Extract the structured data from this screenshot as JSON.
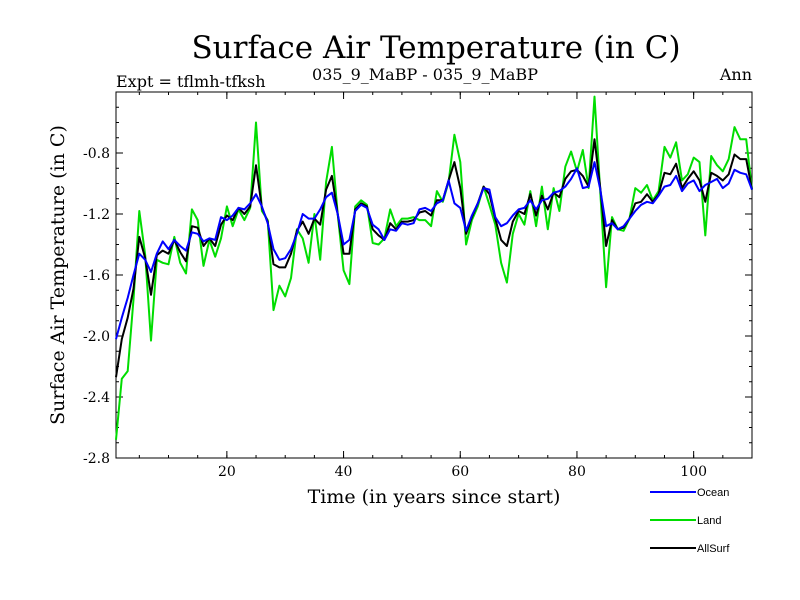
{
  "chart_data": {
    "type": "line",
    "title": "Surface Air Temperature (in C)",
    "subtitle_left": "Expt = tflmh-tfksh",
    "subtitle_center": "035_9_MaBP - 035_9_MaBP",
    "subtitle_right": "Ann",
    "xlabel": "Time (in years since start)",
    "ylabel": "Surface Air Temperature (in C)",
    "xlim": [
      1,
      110
    ],
    "ylim": [
      -2.8,
      -0.4
    ],
    "xticks": [
      20,
      40,
      60,
      80,
      100
    ],
    "xtick_labels": [
      "20",
      "40",
      "60",
      "80",
      "100"
    ],
    "yticks": [
      -2.8,
      -2.4,
      -2.0,
      -1.6,
      -1.2,
      -0.8
    ],
    "ytick_labels": [
      "-2.8",
      "-2.4",
      "-2.0",
      "-1.6",
      "-1.2",
      "-0.8"
    ],
    "x": [
      1,
      2,
      3,
      4,
      5,
      6,
      7,
      8,
      9,
      10,
      11,
      12,
      13,
      14,
      15,
      16,
      17,
      18,
      19,
      20,
      21,
      22,
      23,
      24,
      25,
      26,
      27,
      28,
      29,
      30,
      31,
      32,
      33,
      34,
      35,
      36,
      37,
      38,
      39,
      40,
      41,
      42,
      43,
      44,
      45,
      46,
      47,
      48,
      49,
      50,
      51,
      52,
      53,
      54,
      55,
      56,
      57,
      58,
      59,
      60,
      61,
      62,
      63,
      64,
      65,
      66,
      67,
      68,
      69,
      70,
      71,
      72,
      73,
      74,
      75,
      76,
      77,
      78,
      79,
      80,
      81,
      82,
      83,
      84,
      85,
      86,
      87,
      88,
      89,
      90,
      91,
      92,
      93,
      94,
      95,
      96,
      97,
      98,
      99,
      100,
      101,
      102,
      103,
      104,
      105,
      106,
      107,
      108,
      109,
      110
    ],
    "series": [
      {
        "name": "Ocean",
        "color": "#0000ff",
        "values": [
          -2.02,
          -1.88,
          -1.75,
          -1.6,
          -1.46,
          -1.5,
          -1.58,
          -1.46,
          -1.38,
          -1.43,
          -1.37,
          -1.41,
          -1.44,
          -1.32,
          -1.33,
          -1.38,
          -1.36,
          -1.37,
          -1.22,
          -1.24,
          -1.21,
          -1.16,
          -1.17,
          -1.13,
          -1.07,
          -1.15,
          -1.26,
          -1.43,
          -1.5,
          -1.49,
          -1.43,
          -1.33,
          -1.2,
          -1.23,
          -1.23,
          -1.17,
          -1.09,
          -1.06,
          -1.2,
          -1.4,
          -1.37,
          -1.18,
          -1.14,
          -1.16,
          -1.27,
          -1.3,
          -1.37,
          -1.3,
          -1.31,
          -1.26,
          -1.27,
          -1.26,
          -1.17,
          -1.16,
          -1.18,
          -1.13,
          -1.11,
          -0.98,
          -1.13,
          -1.16,
          -1.31,
          -1.21,
          -1.13,
          -1.03,
          -1.04,
          -1.22,
          -1.28,
          -1.26,
          -1.21,
          -1.17,
          -1.16,
          -1.11,
          -1.17,
          -1.11,
          -1.1,
          -1.06,
          -1.05,
          -1.02,
          -0.97,
          -0.9,
          -1.03,
          -1.02,
          -0.86,
          -1.04,
          -1.28,
          -1.26,
          -1.3,
          -1.28,
          -1.23,
          -1.18,
          -1.14,
          -1.12,
          -1.13,
          -1.08,
          -1.02,
          -1.01,
          -0.95,
          -1.05,
          -1.0,
          -0.98,
          -1.05,
          -1.01,
          -0.99,
          -0.97,
          -1.03,
          -1.0,
          -0.91,
          -0.93,
          -0.94,
          -1.04
        ]
      },
      {
        "name": "Land",
        "color": "#00dd00",
        "values": [
          -2.68,
          -2.28,
          -2.23,
          -1.76,
          -1.18,
          -1.47,
          -2.03,
          -1.5,
          -1.52,
          -1.53,
          -1.35,
          -1.52,
          -1.59,
          -1.17,
          -1.24,
          -1.54,
          -1.37,
          -1.48,
          -1.36,
          -1.15,
          -1.28,
          -1.17,
          -1.24,
          -1.16,
          -0.6,
          -1.18,
          -1.24,
          -1.83,
          -1.67,
          -1.74,
          -1.62,
          -1.3,
          -1.36,
          -1.52,
          -1.2,
          -1.5,
          -0.99,
          -0.76,
          -1.2,
          -1.57,
          -1.66,
          -1.15,
          -1.11,
          -1.14,
          -1.39,
          -1.4,
          -1.36,
          -1.17,
          -1.28,
          -1.23,
          -1.23,
          -1.22,
          -1.24,
          -1.24,
          -1.28,
          -1.05,
          -1.12,
          -0.99,
          -0.68,
          -0.86,
          -1.4,
          -1.24,
          -1.15,
          -1.02,
          -1.14,
          -1.27,
          -1.52,
          -1.65,
          -1.33,
          -1.2,
          -1.27,
          -1.05,
          -1.28,
          -1.02,
          -1.3,
          -1.03,
          -1.18,
          -0.89,
          -0.79,
          -0.92,
          -0.78,
          -1.03,
          -0.43,
          -1.06,
          -1.68,
          -1.22,
          -1.3,
          -1.31,
          -1.23,
          -1.03,
          -1.06,
          -1.01,
          -1.11,
          -1.05,
          -0.76,
          -0.83,
          -0.73,
          -0.98,
          -0.94,
          -0.83,
          -0.86,
          -1.34,
          -0.82,
          -0.88,
          -0.92,
          -0.84,
          -0.63,
          -0.71,
          -0.71,
          -1.04
        ]
      },
      {
        "name": "AllSurf",
        "color": "#000000",
        "values": [
          -2.27,
          -2.02,
          -1.88,
          -1.69,
          -1.35,
          -1.49,
          -1.73,
          -1.47,
          -1.44,
          -1.46,
          -1.37,
          -1.45,
          -1.51,
          -1.28,
          -1.29,
          -1.41,
          -1.36,
          -1.41,
          -1.27,
          -1.21,
          -1.24,
          -1.16,
          -1.2,
          -1.15,
          -0.88,
          -1.16,
          -1.25,
          -1.53,
          -1.55,
          -1.55,
          -1.46,
          -1.31,
          -1.25,
          -1.33,
          -1.23,
          -1.27,
          -1.04,
          -0.95,
          -1.2,
          -1.46,
          -1.46,
          -1.17,
          -1.13,
          -1.15,
          -1.3,
          -1.34,
          -1.37,
          -1.26,
          -1.3,
          -1.25,
          -1.25,
          -1.24,
          -1.19,
          -1.18,
          -1.21,
          -1.11,
          -1.11,
          -0.98,
          -0.86,
          -1.03,
          -1.33,
          -1.22,
          -1.13,
          -1.02,
          -1.07,
          -1.23,
          -1.37,
          -1.41,
          -1.25,
          -1.18,
          -1.2,
          -1.07,
          -1.21,
          -1.08,
          -1.17,
          -1.06,
          -1.09,
          -0.97,
          -0.92,
          -0.91,
          -0.95,
          -1.02,
          -0.71,
          -1.03,
          -1.41,
          -1.24,
          -1.3,
          -1.29,
          -1.23,
          -1.13,
          -1.12,
          -1.07,
          -1.12,
          -1.07,
          -0.93,
          -0.94,
          -0.87,
          -1.03,
          -0.97,
          -0.92,
          -0.98,
          -1.12,
          -0.93,
          -0.95,
          -0.98,
          -0.94,
          -0.81,
          -0.84,
          -0.84,
          -1.04
        ]
      }
    ],
    "legend_position": "bottom-right"
  }
}
